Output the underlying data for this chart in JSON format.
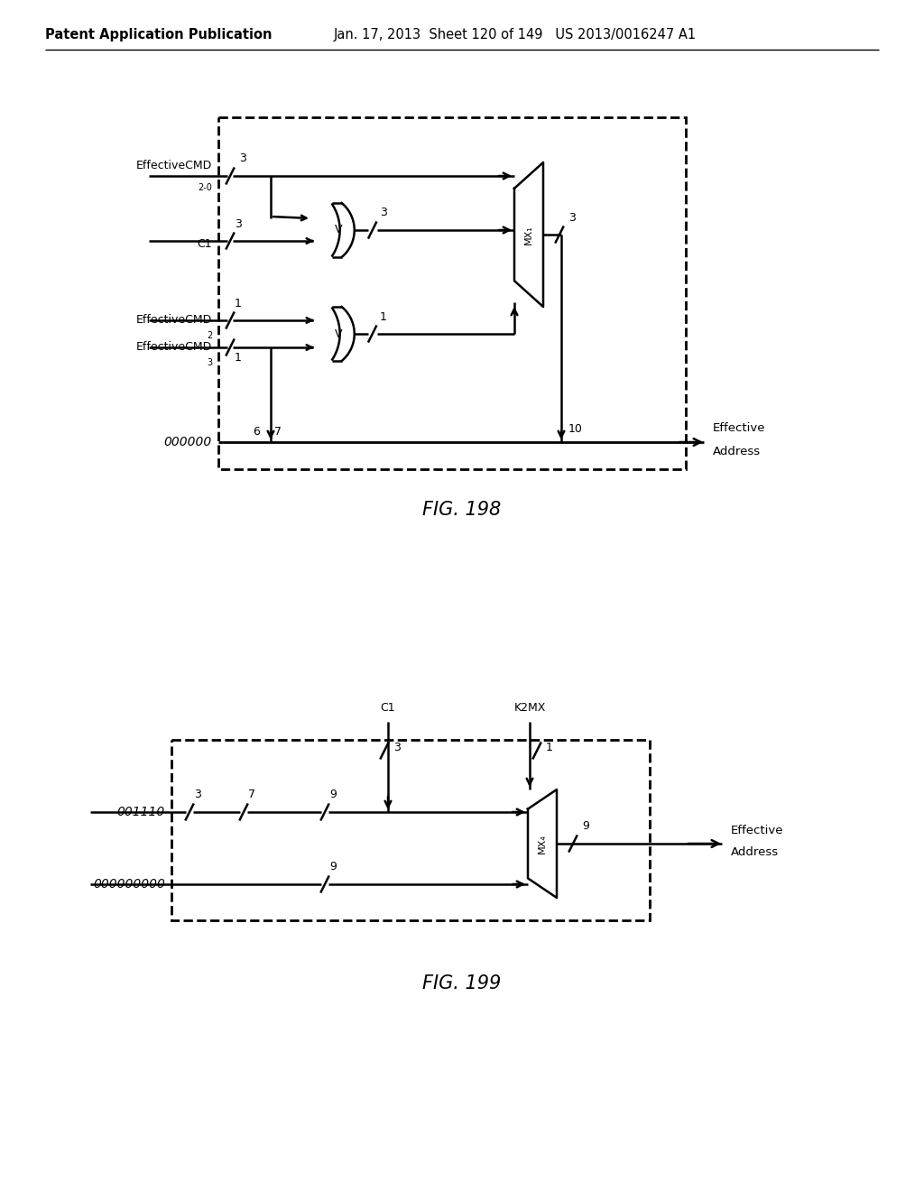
{
  "bg_color": "#ffffff",
  "fig198_title": "FIG. 198",
  "fig199_title": "FIG. 199",
  "header_bold": "Patent Application Publication",
  "header_normal": "Jan. 17, 2013  Sheet 120 of 149   US 2013/0016247 A1"
}
